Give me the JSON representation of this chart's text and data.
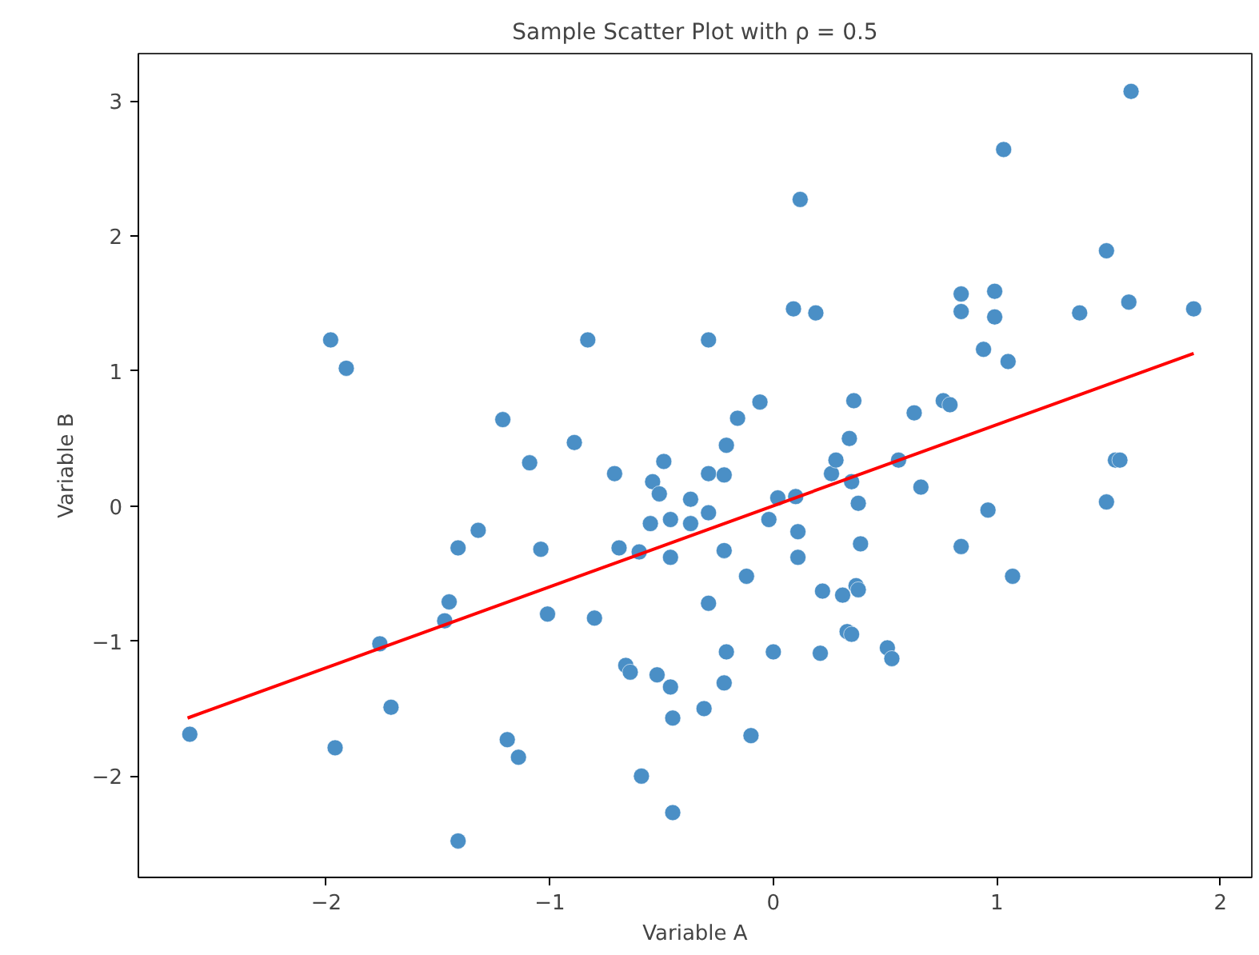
{
  "chart_data": {
    "type": "scatter",
    "title": "Sample Scatter Plot with ρ = 0.5",
    "xlabel": "Variable A",
    "ylabel": "Variable B",
    "xlim": [
      -2.84,
      2.14
    ],
    "ylim": [
      -2.75,
      3.35
    ],
    "xticks": [
      -2,
      -1,
      0,
      1,
      2
    ],
    "yticks": [
      -2,
      -1,
      0,
      1,
      2,
      3
    ],
    "grid": false,
    "marker": "circle",
    "series": [
      {
        "color": "#4a8fc6",
        "x": [
          -2.61,
          -1.98,
          -1.91,
          -1.96,
          -1.76,
          -1.71,
          -1.47,
          -1.45,
          -1.41,
          -1.41,
          -1.32,
          -1.21,
          -1.19,
          -1.14,
          -1.09,
          -1.04,
          -1.01,
          -0.89,
          -0.83,
          -0.8,
          -0.71,
          -0.69,
          -0.66,
          -0.64,
          -0.6,
          -0.59,
          -0.55,
          -0.54,
          -0.52,
          -0.51,
          -0.49,
          -0.46,
          -0.46,
          -0.46,
          -0.45,
          -0.45,
          -0.37,
          -0.37,
          -0.31,
          -0.29,
          -0.29,
          -0.29,
          -0.29,
          -0.22,
          -0.22,
          -0.22,
          -0.21,
          -0.21,
          -0.16,
          -0.12,
          -0.1,
          -0.06,
          -0.02,
          0.0,
          0.02,
          0.09,
          0.1,
          0.11,
          0.11,
          0.12,
          0.19,
          0.21,
          0.22,
          0.26,
          0.28,
          0.31,
          0.33,
          0.35,
          0.35,
          0.34,
          0.36,
          0.37,
          0.38,
          0.38,
          0.39,
          0.51,
          0.53,
          0.56,
          0.63,
          0.66,
          0.76,
          0.79,
          0.84,
          0.84,
          0.84,
          0.94,
          0.96,
          0.99,
          0.99,
          1.03,
          1.05,
          1.07,
          1.37,
          1.49,
          1.49,
          1.53,
          1.55,
          1.59,
          1.6,
          1.88
        ],
        "values": [
          -1.69,
          1.23,
          1.02,
          -1.79,
          -1.02,
          -1.49,
          -0.85,
          -0.71,
          -0.31,
          -2.48,
          -0.18,
          0.64,
          -1.73,
          -1.86,
          0.32,
          -0.32,
          -0.8,
          0.47,
          1.23,
          -0.83,
          0.24,
          -0.31,
          -1.18,
          -1.23,
          -0.34,
          -2.0,
          -0.13,
          0.18,
          -1.25,
          0.09,
          0.33,
          -1.34,
          -0.38,
          -0.1,
          -1.57,
          -2.27,
          0.05,
          -0.13,
          -1.5,
          0.24,
          1.23,
          -0.05,
          -0.72,
          0.23,
          -0.33,
          -1.31,
          0.45,
          -1.08,
          0.65,
          -0.52,
          -1.7,
          0.77,
          -0.1,
          -1.08,
          0.06,
          1.46,
          0.07,
          -0.19,
          -0.38,
          2.27,
          1.43,
          -1.09,
          -0.63,
          0.24,
          0.34,
          -0.66,
          -0.93,
          -0.95,
          0.18,
          0.5,
          0.78,
          -0.59,
          -0.62,
          0.02,
          -0.28,
          -1.05,
          -1.13,
          0.34,
          0.69,
          0.14,
          0.78,
          0.75,
          1.57,
          1.44,
          -0.3,
          1.16,
          -0.03,
          1.59,
          1.4,
          2.64,
          1.07,
          -0.52,
          1.43,
          1.89,
          0.03,
          0.34,
          0.34,
          1.51,
          3.07,
          1.46
        ]
      },
      {
        "type": "line",
        "color": "#ff0000",
        "x": [
          -2.62,
          1.88
        ],
        "values": [
          -1.57,
          1.13
        ],
        "marker": "none"
      }
    ]
  }
}
